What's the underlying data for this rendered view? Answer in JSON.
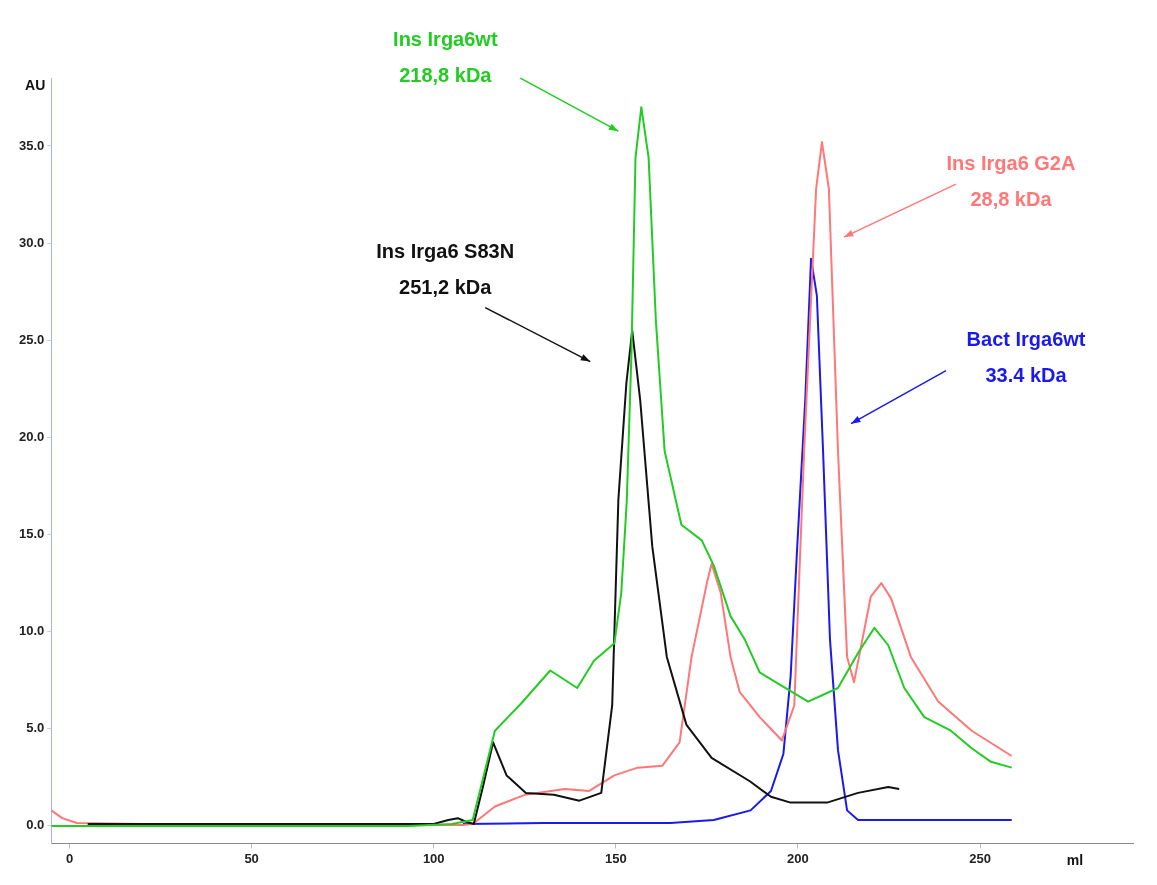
{
  "chart_data": {
    "type": "line",
    "xlabel": "ml",
    "ylabel": "AU",
    "xlim": [
      -5,
      292
    ],
    "ylim": [
      -0.9,
      38.5
    ],
    "xticks": [
      0,
      50,
      100,
      150,
      200,
      250
    ],
    "yticks": [
      {
        "value": 0,
        "label": "0.0"
      },
      {
        "value": 5,
        "label": "5.0"
      },
      {
        "value": 10,
        "label": "10.0"
      },
      {
        "value": 15,
        "label": "15.0"
      },
      {
        "value": 20,
        "label": "20.0"
      },
      {
        "value": 25,
        "label": "25.0"
      },
      {
        "value": 30,
        "label": "30.0"
      },
      {
        "value": 35,
        "label": "35.0"
      }
    ],
    "grid": false,
    "legend": false,
    "marker": "none",
    "line_style": "solid",
    "series": [
      {
        "name": "Ins Irga6wt",
        "color": "#22cc22",
        "x": [
          -5,
          20,
          60,
          93,
          105,
          110.7,
          116.8,
          124,
          132,
          139.4,
          144,
          149.6,
          151.5,
          153,
          154.3,
          155.4,
          157,
          159,
          161,
          163.4,
          168,
          173.6,
          176.9,
          181.5,
          185.4,
          189.5,
          194.8,
          202.8,
          211,
          216.5,
          221,
          224.8,
          229.2,
          234.7,
          242,
          247.7,
          253,
          258.7
        ],
        "values": [
          0,
          0,
          0,
          0,
          0.1,
          0.3,
          4.9,
          6.3,
          8,
          7.1,
          8.5,
          9.4,
          12,
          16.7,
          24.4,
          34.4,
          37,
          34.4,
          26,
          19.3,
          15.5,
          14.7,
          13.4,
          10.8,
          9.6,
          7.9,
          7.3,
          6.4,
          7.1,
          8.9,
          10.2,
          9.3,
          7.1,
          5.6,
          4.9,
          4,
          3.3,
          3
        ]
      },
      {
        "name": "Ins Irga6 S83N",
        "color": "#111111",
        "x": [
          5,
          50,
          100,
          104,
          106.6,
          109,
          111,
          113.5,
          116.3,
          120,
          125.3,
          133,
          140,
          146,
          149,
          150.7,
          152.9,
          154.5,
          156.7,
          160,
          164,
          169.4,
          176.3,
          186.8,
          192.6,
          198,
          208,
          216.5,
          224.8,
          227.8
        ],
        "values": [
          0.1,
          0.1,
          0.1,
          0.3,
          0.4,
          0.2,
          0.1,
          2,
          4.3,
          2.6,
          1.7,
          1.6,
          1.3,
          1.7,
          6.2,
          16.8,
          22.8,
          25.5,
          21.9,
          14.4,
          8.7,
          5.2,
          3.5,
          2.3,
          1.5,
          1.2,
          1.2,
          1.7,
          2,
          1.9
        ]
      },
      {
        "name": "Ins Irga6 G2A",
        "color": "#ff7777",
        "x": [
          -5,
          -2,
          2,
          20,
          60,
          100,
          108,
          110.7,
          116.8,
          125,
          136,
          142.7,
          149.6,
          156,
          162.8,
          167.5,
          170.8,
          175,
          176.3,
          178.8,
          181.5,
          184,
          189.5,
          195.6,
          199,
          201.7,
          205,
          206.6,
          208.5,
          211,
          213.5,
          215.4,
          220,
          222.9,
          225.6,
          231,
          238.5,
          247.7,
          258.7
        ],
        "values": [
          0.8,
          0.4,
          0.15,
          0.1,
          0.05,
          0.05,
          0.05,
          0.1,
          1,
          1.6,
          1.9,
          1.8,
          2.6,
          3,
          3.1,
          4.3,
          8.7,
          12.5,
          13.5,
          12,
          8.7,
          6.9,
          5.6,
          4.4,
          6.2,
          19.3,
          32.8,
          35.2,
          32.8,
          19.3,
          8.7,
          7.4,
          11.8,
          12.5,
          11.7,
          8.7,
          6.4,
          4.9,
          3.6
        ]
      },
      {
        "name": "Bact Irga6wt",
        "color": "#1a1aee",
        "x": [
          108,
          130,
          165,
          176.9,
          187,
          192.6,
          196,
          198,
          199.7,
          202,
          203.6,
          205.2,
          206.9,
          208.8,
          211,
          213.5,
          216.5,
          258.7
        ],
        "values": [
          0.1,
          0.15,
          0.15,
          0.3,
          0.8,
          1.8,
          3.7,
          7.7,
          14,
          21.9,
          29.2,
          27.3,
          19.3,
          9.6,
          3.9,
          0.8,
          0.3,
          0.3
        ]
      }
    ],
    "annotations": [
      "218,8 kDa",
      "251,2 kDa",
      "28,8 kDa",
      "33.4 kDa"
    ]
  }
}
